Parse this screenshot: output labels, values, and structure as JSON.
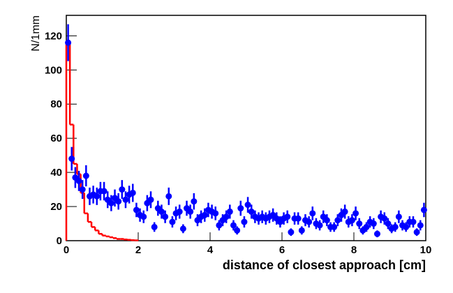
{
  "chart_data": {
    "type": "histogram",
    "x_label": "distance of closest approach  [cm]",
    "y_label": "N/1mm",
    "xlim": [
      0,
      10
    ],
    "xticks": [
      0,
      2,
      4,
      6,
      8,
      10
    ],
    "ylim": [
      0,
      132
    ],
    "yticks": [
      0,
      20,
      40,
      60,
      80,
      100,
      120
    ],
    "series": [
      {
        "type": "errorbar",
        "color": "#0000ff",
        "x": [
          0.05,
          0.15,
          0.25,
          0.35,
          0.45,
          0.55,
          0.65,
          0.75,
          0.85,
          0.95,
          1.05,
          1.15,
          1.25,
          1.35,
          1.45,
          1.55,
          1.65,
          1.75,
          1.85,
          1.95,
          2.05,
          2.15,
          2.25,
          2.35,
          2.45,
          2.55,
          2.65,
          2.75,
          2.85,
          2.95,
          3.05,
          3.15,
          3.25,
          3.35,
          3.45,
          3.55,
          3.65,
          3.75,
          3.85,
          3.95,
          4.05,
          4.15,
          4.25,
          4.35,
          4.45,
          4.55,
          4.65,
          4.75,
          4.85,
          4.95,
          5.05,
          5.15,
          5.25,
          5.35,
          5.45,
          5.55,
          5.65,
          5.75,
          5.85,
          5.95,
          6.05,
          6.15,
          6.25,
          6.35,
          6.45,
          6.55,
          6.65,
          6.75,
          6.85,
          6.95,
          7.05,
          7.15,
          7.25,
          7.35,
          7.45,
          7.55,
          7.65,
          7.75,
          7.85,
          7.95,
          8.05,
          8.15,
          8.25,
          8.35,
          8.45,
          8.55,
          8.65,
          8.75,
          8.85,
          8.95,
          9.05,
          9.15,
          9.25,
          9.35,
          9.45,
          9.55,
          9.65,
          9.75,
          9.85,
          9.95
        ],
        "values": [
          116,
          48,
          37,
          35,
          30,
          38,
          26,
          27,
          26,
          29,
          29,
          24,
          22,
          25,
          23,
          30,
          24,
          27,
          28,
          18,
          15,
          14,
          22,
          24,
          8,
          19,
          17,
          14,
          26,
          11,
          16,
          17,
          7,
          19,
          17,
          23,
          12,
          14,
          15,
          18,
          17,
          16,
          9,
          12,
          14,
          17,
          9,
          6,
          19,
          11,
          21,
          17,
          14,
          13,
          14,
          13,
          14,
          15,
          13,
          11,
          13,
          14,
          5,
          13,
          13,
          6,
          12,
          11,
          16,
          10,
          9,
          14,
          12,
          8,
          8,
          12,
          15,
          17,
          11,
          12,
          16,
          10,
          6,
          8,
          11,
          10,
          4,
          14,
          13,
          10,
          7,
          8,
          14,
          9,
          8,
          11,
          11,
          5,
          9,
          18
        ],
        "errors": [
          10.8,
          6.9,
          6.1,
          5.9,
          5.5,
          6.2,
          5.1,
          5.2,
          5.1,
          5.4,
          5.4,
          4.9,
          4.7,
          5,
          4.8,
          5.5,
          4.9,
          5.2,
          5.3,
          4.2,
          3.9,
          3.7,
          4.7,
          4.9,
          2.8,
          4.4,
          4.1,
          3.7,
          5.1,
          3.3,
          4,
          4.1,
          2.6,
          4.4,
          4.1,
          4.8,
          3.5,
          3.7,
          3.9,
          4.2,
          4.1,
          4,
          3,
          3.5,
          3.7,
          4.1,
          3,
          2.4,
          4.4,
          3.3,
          4.6,
          4.1,
          3.7,
          3.6,
          3.7,
          3.6,
          3.7,
          3.9,
          3.6,
          3.3,
          3.6,
          3.7,
          2.2,
          3.6,
          3.6,
          2.4,
          3.5,
          3.3,
          4,
          3.2,
          3,
          3.7,
          3.5,
          2.8,
          2.8,
          3.5,
          3.9,
          4.1,
          3.3,
          3.5,
          4,
          3.2,
          2.4,
          2.8,
          3.3,
          3.2,
          2,
          3.7,
          3.6,
          3.2,
          2.6,
          2.8,
          3.7,
          3,
          2.8,
          3.3,
          3.3,
          2.2,
          3,
          4.2
        ]
      },
      {
        "type": "step",
        "color": "#ff0000",
        "bins": [
          0,
          0.1,
          0.2,
          0.3,
          0.4,
          0.5,
          0.6,
          0.7,
          0.8,
          0.9,
          1,
          1.1,
          1.2,
          1.3,
          1.4,
          1.5,
          1.6,
          1.7,
          1.8,
          1.9,
          2
        ],
        "counts": [
          115,
          68,
          45,
          39,
          28,
          16,
          11,
          8,
          6,
          4,
          3,
          2.5,
          2,
          1.5,
          1,
          1,
          0.7,
          0.5,
          0.3,
          0.2
        ]
      }
    ]
  }
}
